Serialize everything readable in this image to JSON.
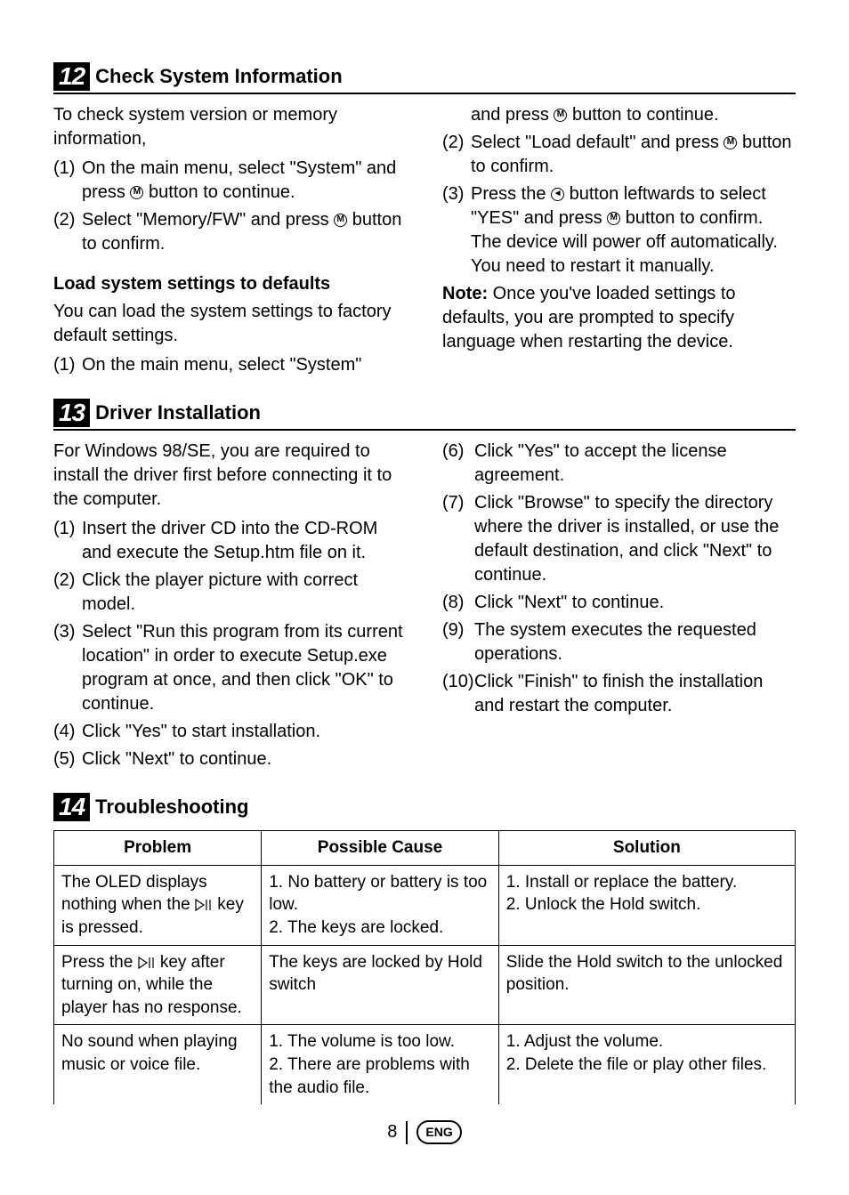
{
  "section12": {
    "number": "12",
    "title": "Check System Information",
    "col1": {
      "intro": "To check system version or memory information,",
      "items": [
        {
          "n": "(1)",
          "before": "On the main menu, select \"System\" and press ",
          "icon": "M",
          "after": " button to continue."
        },
        {
          "n": "(2)",
          "before": "Select \"Memory/FW\" and press ",
          "icon": "M",
          "after": " button to confirm."
        }
      ],
      "subhead": "Load system settings to defaults",
      "sub_intro": "You can load the system settings to factory default settings.",
      "sub_items": [
        {
          "n": "(1)",
          "before": "On the main menu, select \"System\"",
          "icon": "",
          "after": ""
        }
      ]
    },
    "col2": {
      "cont": {
        "before": "and press ",
        "icon": "M",
        "after": " button to continue."
      },
      "items": [
        {
          "n": "(2)",
          "before": "Select \"Load default\" and press ",
          "icon": "M",
          "after": " button to confirm."
        },
        {
          "n": "(3)",
          "parts": [
            {
              "t": "Press the "
            },
            {
              "icon": "◄"
            },
            {
              "t": " button leftwards to select \"YES\" and press "
            },
            {
              "icon": "M"
            },
            {
              "t": " button to confirm. The device will power off automatically. You need to restart it manually."
            }
          ]
        }
      ],
      "note_label": "Note:",
      "note_text": " Once you've loaded settings to defaults, you are prompted to specify language when restarting the device."
    }
  },
  "section13": {
    "number": "13",
    "title": "Driver Installation",
    "col1": {
      "intro": "For Windows 98/SE, you are required to install the driver first before connecting it to the computer.",
      "items": [
        {
          "n": "(1)",
          "t": "Insert the driver CD into the CD-ROM and execute the Setup.htm file on it."
        },
        {
          "n": "(2)",
          "t": "Click the player picture with correct model."
        },
        {
          "n": "(3)",
          "t": "Select \"Run this program from its current location\" in order to execute Setup.exe program at once, and then click \"OK\" to continue."
        },
        {
          "n": "(4)",
          "t": "Click \"Yes\" to start installation."
        },
        {
          "n": "(5)",
          "t": "Click \"Next\" to continue."
        }
      ]
    },
    "col2": {
      "items": [
        {
          "n": "(6)",
          "t": "Click \"Yes\" to accept the license agreement."
        },
        {
          "n": "(7)",
          "t": "Click \"Browse\" to specify the directory where the driver is installed, or use the default destination, and click \"Next\" to continue."
        },
        {
          "n": "(8)",
          "t": "Click \"Next\" to continue."
        },
        {
          "n": "(9)",
          "t": "The system executes the requested operations."
        },
        {
          "n": "(10)",
          "t": "Click \"Finish\" to finish the installation and restart the computer."
        }
      ]
    }
  },
  "section14": {
    "number": "14",
    "title": "Troubleshooting",
    "headers": [
      "Problem",
      "Possible Cause",
      "Solution"
    ],
    "rows": [
      {
        "problem_before": "The OLED displays nothing when the ",
        "problem_icon": true,
        "problem_after": " key is pressed.",
        "cause": "1. No battery or battery is too low.\n2. The keys are locked.",
        "solution": "1. Install or replace the battery.\n2. Unlock the Hold switch."
      },
      {
        "problem_before": "Press the ",
        "problem_icon": true,
        "problem_after": " key after turning on, while the player has no response.",
        "cause": "The keys are locked by Hold switch",
        "solution": "Slide the Hold switch to the unlocked position."
      },
      {
        "problem_before": "No sound when playing music or voice file.",
        "problem_icon": false,
        "problem_after": "",
        "cause": "1. The volume is too low.\n2. There are problems with the audio file.",
        "solution": "1. Adjust the volume.\n2. Delete the file or play other files."
      }
    ]
  },
  "footer": {
    "page": "8",
    "lang": "ENG"
  }
}
